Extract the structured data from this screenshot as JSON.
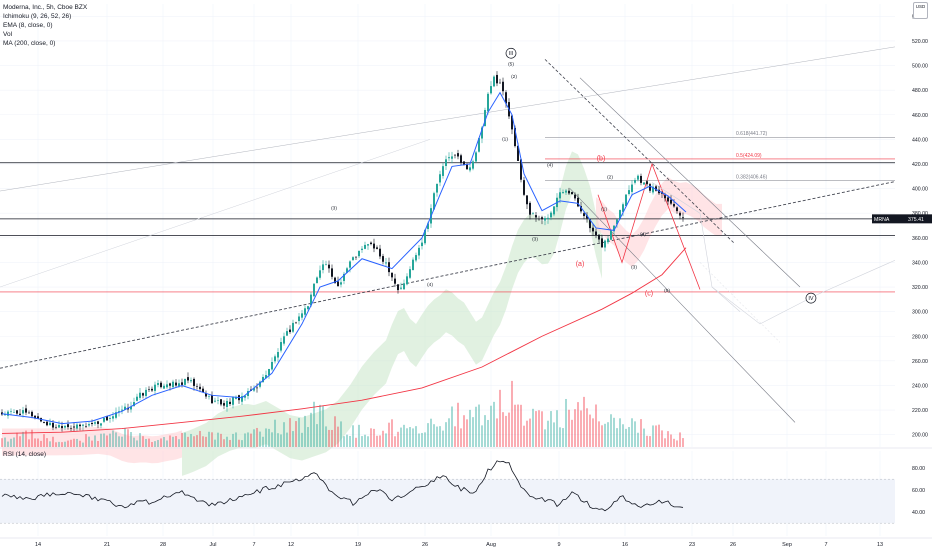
{
  "header": {
    "title": "Moderna, Inc., 5h, Cboe BZX",
    "indicators": [
      "Ichimoku (9, 26, 52, 26)",
      "EMA (8, close, 0)",
      "Vol",
      "MA (200, close, 0)"
    ],
    "currency_label": "USD"
  },
  "rsi_panel": {
    "title": "RSI (14, close)",
    "ticks": [
      "80.00",
      "60.00",
      "40.00"
    ]
  },
  "colors": {
    "up": "#26a69a",
    "down": "#131722",
    "ema": "#2962ff",
    "ma200": "#f23645",
    "kumo_bull": "#c8e6c9",
    "kumo_bear": "#ffcdd2",
    "price_tag": "#131722"
  },
  "chart_data": {
    "type": "candlestick",
    "title": "Moderna, Inc., 5h, Cboe BZX",
    "symbol": "MRNA",
    "last_price": "375.41",
    "ylim": [
      190,
      550
    ],
    "y_ticks": [
      "540.00",
      "520.00",
      "500.00",
      "480.00",
      "460.00",
      "440.00",
      "420.00",
      "400.00",
      "380.00",
      "360.00",
      "340.00",
      "320.00",
      "300.00",
      "280.00",
      "260.00",
      "240.00",
      "220.00",
      "200.00"
    ],
    "x_ticks": [
      "14",
      "21",
      "28",
      "Jul",
      "7",
      "12",
      "19",
      "26",
      "Aug",
      "9",
      "16",
      "23",
      "26",
      "Sep",
      "7",
      "13"
    ],
    "close_path": [
      [
        0,
        217
      ],
      [
        6,
        218
      ],
      [
        10,
        216
      ],
      [
        14,
        210
      ],
      [
        17,
        207
      ],
      [
        21,
        208
      ],
      [
        25,
        206
      ],
      [
        28,
        208
      ],
      [
        32,
        210
      ],
      [
        37,
        215
      ],
      [
        42,
        222
      ],
      [
        46,
        232
      ],
      [
        50,
        238
      ],
      [
        55,
        242
      ],
      [
        58,
        240
      ],
      [
        62,
        244
      ],
      [
        66,
        236
      ],
      [
        70,
        228
      ],
      [
        74,
        225
      ],
      [
        78,
        229
      ],
      [
        82,
        233
      ],
      [
        86,
        242
      ],
      [
        90,
        258
      ],
      [
        94,
        278
      ],
      [
        98,
        293
      ],
      [
        102,
        305
      ],
      [
        104,
        322
      ],
      [
        106,
        336
      ],
      [
        108,
        339
      ],
      [
        110,
        327
      ],
      [
        112,
        321
      ],
      [
        114,
        331
      ],
      [
        116,
        340
      ],
      [
        118,
        346
      ],
      [
        120,
        350
      ],
      [
        122,
        356
      ],
      [
        124,
        352
      ],
      [
        126,
        345
      ],
      [
        128,
        340
      ],
      [
        130,
        329
      ],
      [
        132,
        318
      ],
      [
        134,
        322
      ],
      [
        136,
        335
      ],
      [
        138,
        348
      ],
      [
        140,
        358
      ],
      [
        142,
        374
      ],
      [
        144,
        395
      ],
      [
        146,
        412
      ],
      [
        148,
        422
      ],
      [
        150,
        428
      ],
      [
        152,
        425
      ],
      [
        154,
        418
      ],
      [
        156,
        418
      ],
      [
        158,
        428
      ],
      [
        160,
        450
      ],
      [
        162,
        475
      ],
      [
        164,
        490
      ],
      [
        166,
        486
      ],
      [
        168,
        470
      ],
      [
        170,
        450
      ],
      [
        172,
        420
      ],
      [
        174,
        395
      ],
      [
        176,
        380
      ],
      [
        178,
        378
      ],
      [
        180,
        374
      ],
      [
        182,
        377
      ],
      [
        184,
        388
      ],
      [
        186,
        399
      ],
      [
        188,
        400
      ],
      [
        190,
        395
      ],
      [
        192,
        386
      ],
      [
        194,
        380
      ],
      [
        196,
        368
      ],
      [
        198,
        360
      ],
      [
        200,
        354
      ],
      [
        202,
        360
      ],
      [
        204,
        370
      ],
      [
        206,
        384
      ],
      [
        208,
        395
      ],
      [
        210,
        405
      ],
      [
        212,
        410
      ],
      [
        214,
        404
      ],
      [
        216,
        400
      ],
      [
        218,
        399
      ],
      [
        220,
        396
      ],
      [
        222,
        392
      ],
      [
        224,
        385
      ],
      [
        226,
        380
      ],
      [
        228,
        375.41
      ]
    ],
    "volume_path": [
      [
        0,
        3
      ],
      [
        10,
        5
      ],
      [
        20,
        2
      ],
      [
        30,
        4
      ],
      [
        40,
        6
      ],
      [
        50,
        3
      ],
      [
        60,
        4
      ],
      [
        70,
        5
      ],
      [
        80,
        4
      ],
      [
        90,
        8
      ],
      [
        100,
        10
      ],
      [
        104,
        14
      ],
      [
        110,
        9
      ],
      [
        120,
        6
      ],
      [
        130,
        8
      ],
      [
        140,
        9
      ],
      [
        150,
        12
      ],
      [
        160,
        14
      ],
      [
        165,
        18
      ],
      [
        170,
        20
      ],
      [
        175,
        14
      ],
      [
        180,
        12
      ],
      [
        185,
        15
      ],
      [
        190,
        12
      ],
      [
        195,
        15
      ],
      [
        200,
        16
      ],
      [
        205,
        12
      ],
      [
        210,
        9
      ],
      [
        215,
        7
      ],
      [
        220,
        6
      ],
      [
        228,
        4
      ]
    ],
    "ema8_path": [
      [
        0,
        217
      ],
      [
        10,
        214
      ],
      [
        20,
        209
      ],
      [
        30,
        211
      ],
      [
        40,
        219
      ],
      [
        50,
        232
      ],
      [
        60,
        240
      ],
      [
        70,
        232
      ],
      [
        80,
        230
      ],
      [
        90,
        250
      ],
      [
        100,
        290
      ],
      [
        106,
        320
      ],
      [
        112,
        325
      ],
      [
        120,
        343
      ],
      [
        130,
        335
      ],
      [
        140,
        360
      ],
      [
        146,
        395
      ],
      [
        150,
        418
      ],
      [
        156,
        420
      ],
      [
        162,
        462
      ],
      [
        166,
        478
      ],
      [
        170,
        460
      ],
      [
        174,
        412
      ],
      [
        180,
        382
      ],
      [
        186,
        390
      ],
      [
        192,
        388
      ],
      [
        198,
        368
      ],
      [
        204,
        366
      ],
      [
        210,
        395
      ],
      [
        216,
        402
      ],
      [
        222,
        394
      ],
      [
        228,
        381
      ]
    ],
    "ma200_path": [
      [
        0,
        201
      ],
      [
        20,
        202
      ],
      [
        40,
        205
      ],
      [
        60,
        210
      ],
      [
        80,
        215
      ],
      [
        100,
        221
      ],
      [
        120,
        228
      ],
      [
        140,
        238
      ],
      [
        160,
        255
      ],
      [
        180,
        280
      ],
      [
        200,
        302
      ],
      [
        210,
        315
      ],
      [
        220,
        330
      ],
      [
        228,
        352
      ]
    ],
    "rsi_path": [
      [
        0,
        55
      ],
      [
        10,
        52
      ],
      [
        20,
        58
      ],
      [
        30,
        54
      ],
      [
        40,
        46
      ],
      [
        50,
        50
      ],
      [
        60,
        58
      ],
      [
        70,
        46
      ],
      [
        80,
        54
      ],
      [
        90,
        63
      ],
      [
        100,
        70
      ],
      [
        104,
        78
      ],
      [
        108,
        64
      ],
      [
        112,
        52
      ],
      [
        118,
        48
      ],
      [
        124,
        62
      ],
      [
        130,
        52
      ],
      [
        136,
        58
      ],
      [
        142,
        67
      ],
      [
        148,
        73
      ],
      [
        152,
        62
      ],
      [
        158,
        58
      ],
      [
        162,
        78
      ],
      [
        165,
        85
      ],
      [
        167,
        88
      ],
      [
        170,
        80
      ],
      [
        174,
        60
      ],
      [
        178,
        52
      ],
      [
        182,
        50
      ],
      [
        186,
        46
      ],
      [
        190,
        58
      ],
      [
        194,
        50
      ],
      [
        198,
        42
      ],
      [
        202,
        44
      ],
      [
        206,
        55
      ],
      [
        210,
        48
      ],
      [
        214,
        46
      ],
      [
        218,
        50
      ],
      [
        222,
        48
      ],
      [
        226,
        44
      ],
      [
        228,
        45
      ]
    ],
    "fib_levels": [
      {
        "label": "0.618(441.72)",
        "value": 441.72
      },
      {
        "label": "0.5(424.09)",
        "value": 424.09
      },
      {
        "label": "0.382(406.46)",
        "value": 406.46
      }
    ],
    "h_levels": [
      421,
      375.41,
      362,
      316
    ],
    "wave_labels": [
      {
        "text": "III",
        "x": 167,
        "y": 510,
        "circled": true
      },
      {
        "text": "(5)",
        "x": 167,
        "y": 500
      },
      {
        "text": "(2)",
        "x": 168,
        "y": 490
      },
      {
        "text": "(1)",
        "x": 165,
        "y": 439
      },
      {
        "text": "(4)",
        "x": 180,
        "y": 418
      },
      {
        "text": "(3)",
        "x": 175,
        "y": 358
      },
      {
        "text": "(b)",
        "x": 197,
        "y": 423
      },
      {
        "text": "(a)",
        "x": 190,
        "y": 337
      },
      {
        "text": "(c)",
        "x": 213,
        "y": 313
      },
      {
        "text": "(2)",
        "x": 200,
        "y": 408
      },
      {
        "text": "(1)",
        "x": 198,
        "y": 382
      },
      {
        "text": "(4)",
        "x": 211,
        "y": 362
      },
      {
        "text": "(3)",
        "x": 208,
        "y": 335
      },
      {
        "text": "(5)",
        "x": 219,
        "y": 316
      },
      {
        "text": "(3)",
        "x": 108,
        "y": 383
      },
      {
        "text": "(4)",
        "x": 140,
        "y": 321
      },
      {
        "text": "IV",
        "x": 248,
        "y": 311,
        "circled": true
      }
    ],
    "rsi_ylim": [
      22,
      92
    ],
    "rsi_ticks": [
      80,
      60,
      40
    ],
    "grid": true
  }
}
